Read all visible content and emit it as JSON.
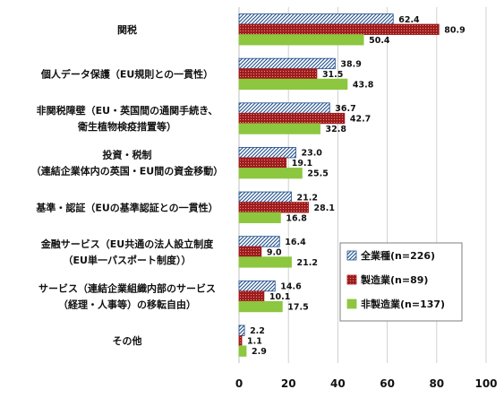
{
  "chart_data": {
    "type": "bar",
    "orientation": "horizontal",
    "categories": [
      [
        "関税"
      ],
      [
        "個人データ保護（EU規則との一貫性）"
      ],
      [
        "非関税障壁（EU・英国間の通関手続き、",
        "衛生植物検疫措置等）"
      ],
      [
        "投資・税制",
        "（連結企業体内の英国・EU間の資金移動）"
      ],
      [
        "基準・認証（EUの基準認証との一貫性）"
      ],
      [
        "金融サービス（EU共通の法人設立制度",
        "（EU単一パスポート制度））"
      ],
      [
        "サービス（連結企業組織内部のサービス",
        "（経理・人事等）の移転自由）"
      ],
      [
        "その他"
      ]
    ],
    "series": [
      {
        "name": "全業種(n=226)",
        "values": [
          62.4,
          38.9,
          36.7,
          23.0,
          21.2,
          16.4,
          14.6,
          2.2
        ],
        "color": "#1f4e8c",
        "fill": "hatch"
      },
      {
        "name": "製造業(n=89)",
        "values": [
          80.9,
          31.5,
          42.7,
          19.1,
          28.1,
          9.0,
          10.1,
          1.1
        ],
        "color": "#a01c1c",
        "fill": "dotted"
      },
      {
        "name": "非製造業(n=137)",
        "values": [
          50.4,
          43.8,
          32.8,
          25.5,
          16.8,
          21.2,
          17.5,
          2.9
        ],
        "color": "#8dc63f",
        "fill": "solid"
      }
    ],
    "xlim": [
      0,
      100
    ],
    "xticks": [
      "0",
      "20",
      "40",
      "60",
      "80",
      "100"
    ],
    "grid": true,
    "legend_position": "bottom-right",
    "title": "",
    "xlabel": "",
    "ylabel": ""
  }
}
